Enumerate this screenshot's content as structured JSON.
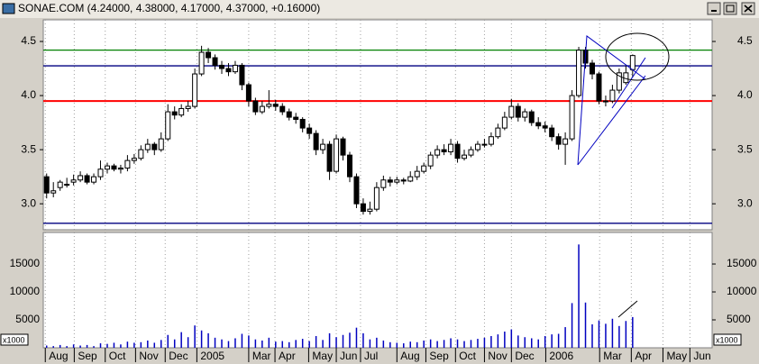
{
  "chart_data": [
    {
      "type": "candlestick",
      "title": "SONAE.COM (4.24000, 4.38000, 4.17000, 4.37000, +0.16000)",
      "x": [
        0,
        1,
        2,
        3,
        4,
        5,
        6,
        7,
        8,
        9,
        10,
        11,
        12,
        13,
        14,
        15,
        16,
        17,
        18,
        19,
        20,
        21,
        22,
        23,
        24,
        25,
        26,
        27,
        28,
        29,
        30,
        31,
        32,
        33,
        34,
        35,
        36,
        37,
        38,
        39,
        40,
        41,
        42,
        43,
        44,
        45,
        46,
        47,
        48,
        49,
        50,
        51,
        52,
        53,
        54,
        55,
        56,
        57,
        58,
        59,
        60,
        61,
        62,
        63,
        64,
        65,
        66,
        67,
        68,
        69,
        70,
        71,
        72,
        73,
        74,
        75,
        76,
        77,
        78,
        79,
        80,
        81,
        82,
        83,
        84,
        85,
        86,
        87
      ],
      "open": [
        3.25,
        3.1,
        3.15,
        3.18,
        3.2,
        3.22,
        3.26,
        3.2,
        3.25,
        3.32,
        3.35,
        3.32,
        3.33,
        3.4,
        3.42,
        3.5,
        3.55,
        3.5,
        3.6,
        3.85,
        3.82,
        3.88,
        3.9,
        4.2,
        4.4,
        4.35,
        4.28,
        4.25,
        4.22,
        4.28,
        4.1,
        3.95,
        3.85,
        3.9,
        3.92,
        3.9,
        3.85,
        3.8,
        3.78,
        3.7,
        3.65,
        3.5,
        3.55,
        3.3,
        3.6,
        3.45,
        3.25,
        3.0,
        2.93,
        2.95,
        3.15,
        3.22,
        3.2,
        3.22,
        3.21,
        3.25,
        3.3,
        3.35,
        3.45,
        3.5,
        3.48,
        3.55,
        3.42,
        3.45,
        3.5,
        3.55,
        3.55,
        3.62,
        3.7,
        3.8,
        3.9,
        3.8,
        3.85,
        3.75,
        3.72,
        3.7,
        3.62,
        3.55,
        3.6,
        4.0,
        4.42,
        4.3,
        4.2,
        3.95,
        3.95,
        4.05,
        4.12,
        4.24
      ],
      "high": [
        3.28,
        3.2,
        3.22,
        3.24,
        3.27,
        3.3,
        3.28,
        3.28,
        3.4,
        3.38,
        3.37,
        3.36,
        3.45,
        3.46,
        3.54,
        3.6,
        3.57,
        3.66,
        3.92,
        3.9,
        3.92,
        3.95,
        4.25,
        4.46,
        4.44,
        4.38,
        4.32,
        4.3,
        4.32,
        4.3,
        4.12,
        3.98,
        3.95,
        4.05,
        3.96,
        3.93,
        3.88,
        3.84,
        3.8,
        3.74,
        3.68,
        3.6,
        3.58,
        3.64,
        3.62,
        3.48,
        3.28,
        3.05,
        3.02,
        3.2,
        3.26,
        3.25,
        3.25,
        3.24,
        3.3,
        3.35,
        3.38,
        3.48,
        3.54,
        3.55,
        3.6,
        3.58,
        3.5,
        3.53,
        3.58,
        3.6,
        3.66,
        3.74,
        3.85,
        3.97,
        3.93,
        3.88,
        3.87,
        3.8,
        3.76,
        3.73,
        3.65,
        3.66,
        4.05,
        4.45,
        4.45,
        4.33,
        4.22,
        4.0,
        4.1,
        4.25,
        4.28,
        4.38
      ],
      "low": [
        3.05,
        3.06,
        3.12,
        3.15,
        3.17,
        3.2,
        3.18,
        3.18,
        3.22,
        3.28,
        3.3,
        3.28,
        3.3,
        3.37,
        3.4,
        3.47,
        3.45,
        3.48,
        3.58,
        3.78,
        3.8,
        3.85,
        3.88,
        4.18,
        4.3,
        4.24,
        4.2,
        4.18,
        4.2,
        4.05,
        3.9,
        3.82,
        3.83,
        3.88,
        3.86,
        3.82,
        3.77,
        3.74,
        3.66,
        3.6,
        3.45,
        3.46,
        3.22,
        3.28,
        3.4,
        3.2,
        2.96,
        2.9,
        2.9,
        2.93,
        3.12,
        3.16,
        3.18,
        3.18,
        3.2,
        3.22,
        3.28,
        3.32,
        3.42,
        3.45,
        3.45,
        3.38,
        3.4,
        3.43,
        3.48,
        3.52,
        3.53,
        3.6,
        3.68,
        3.78,
        3.76,
        3.76,
        3.72,
        3.69,
        3.66,
        3.58,
        3.5,
        3.36,
        3.58,
        3.98,
        4.25,
        4.15,
        3.92,
        3.9,
        3.93,
        4.02,
        4.1,
        4.17
      ],
      "close": [
        3.1,
        3.12,
        3.2,
        3.18,
        3.22,
        3.26,
        3.2,
        3.25,
        3.32,
        3.35,
        3.32,
        3.33,
        3.4,
        3.42,
        3.5,
        3.55,
        3.5,
        3.6,
        3.85,
        3.82,
        3.88,
        3.9,
        4.2,
        4.4,
        4.35,
        4.28,
        4.25,
        4.22,
        4.28,
        4.1,
        3.95,
        3.85,
        3.9,
        3.92,
        3.9,
        3.85,
        3.8,
        3.78,
        3.7,
        3.65,
        3.5,
        3.55,
        3.3,
        3.6,
        3.45,
        3.25,
        3.0,
        2.93,
        2.95,
        3.15,
        3.22,
        3.2,
        3.22,
        3.21,
        3.25,
        3.3,
        3.35,
        3.45,
        3.5,
        3.48,
        3.55,
        3.42,
        3.45,
        3.5,
        3.55,
        3.55,
        3.62,
        3.7,
        3.8,
        3.9,
        3.8,
        3.85,
        3.75,
        3.72,
        3.7,
        3.62,
        3.55,
        3.6,
        4.0,
        4.42,
        4.3,
        4.2,
        3.95,
        3.95,
        4.05,
        4.21,
        4.21,
        4.37
      ],
      "up_color": "#ffffff",
      "down_color": "#000000",
      "xlim": [
        -0.5,
        98.8
      ],
      "ylim": [
        2.76,
        4.7
      ],
      "yticks": [
        {
          "value": 3,
          "label": "3.0"
        },
        3.5,
        {
          "value": 4,
          "label": "4.0"
        },
        4.5
      ],
      "hlines": [
        {
          "value": 4.42,
          "color": "#008000"
        },
        {
          "value": 4.275,
          "color": "#000080"
        },
        {
          "value": 3.95,
          "color": "#ff0000"
        },
        {
          "value": 2.82,
          "color": "#000080"
        }
      ],
      "grid": true
    },
    {
      "type": "bar",
      "x": [
        0,
        1,
        2,
        3,
        4,
        5,
        6,
        7,
        8,
        9,
        10,
        11,
        12,
        13,
        14,
        15,
        16,
        17,
        18,
        19,
        20,
        21,
        22,
        23,
        24,
        25,
        26,
        27,
        28,
        29,
        30,
        31,
        32,
        33,
        34,
        35,
        36,
        37,
        38,
        39,
        40,
        41,
        42,
        43,
        44,
        45,
        46,
        47,
        48,
        49,
        50,
        51,
        52,
        53,
        54,
        55,
        56,
        57,
        58,
        59,
        60,
        61,
        62,
        63,
        64,
        65,
        66,
        67,
        68,
        69,
        70,
        71,
        72,
        73,
        74,
        75,
        76,
        77,
        78,
        79,
        80,
        81,
        82,
        83,
        84,
        85,
        86,
        87
      ],
      "values": [
        400,
        300,
        500,
        300,
        600,
        400,
        500,
        300,
        800,
        700,
        900,
        600,
        1100,
        900,
        1000,
        1300,
        900,
        1400,
        2300,
        1500,
        2800,
        1900,
        4000,
        3100,
        2600,
        1800,
        1500,
        1200,
        1700,
        2500,
        2200,
        1500,
        1300,
        1800,
        1100,
        1200,
        1000,
        1400,
        1600,
        1200,
        2100,
        1400,
        2600,
        1900,
        2300,
        2700,
        3600,
        2600,
        1500,
        1800,
        1300,
        1000,
        900,
        800,
        1100,
        1000,
        1300,
        1500,
        1200,
        1400,
        1700,
        1500,
        1200,
        1400,
        1600,
        1800,
        2100,
        2400,
        2900,
        3300,
        2200,
        1900,
        1700,
        1500,
        2100,
        2400,
        2500,
        3700,
        8000,
        18500,
        8100,
        4200,
        4900,
        4300,
        5200,
        3900,
        4800,
        5500
      ],
      "color": "#0000c0",
      "xlim": [
        -0.5,
        98.8
      ],
      "ylim": [
        0,
        20650
      ],
      "yticks": [
        5000,
        10000,
        15000
      ],
      "y_unit_label": "x1000",
      "xticks": [
        {
          "value": -0.2,
          "label": "Aug"
        },
        {
          "value": 4.1,
          "label": "Sep"
        },
        {
          "value": 8.7,
          "label": "Oct"
        },
        {
          "value": 13.2,
          "label": "Nov"
        },
        {
          "value": 17.6,
          "label": "Dec"
        },
        {
          "value": 22.3,
          "label": "2005"
        },
        {
          "value": 30,
          "label": "Mar"
        },
        {
          "value": 33.9,
          "label": "Apr"
        },
        {
          "value": 38.9,
          "label": "May"
        },
        {
          "value": 43,
          "label": "Jun"
        },
        {
          "value": 46.6,
          "label": "Jul"
        },
        {
          "value": 52,
          "label": "Aug"
        },
        {
          "value": 56.3,
          "label": "Sep"
        },
        {
          "value": 60.7,
          "label": "Oct"
        },
        {
          "value": 65,
          "label": "Nov"
        },
        {
          "value": 69,
          "label": "Dec"
        },
        {
          "value": 74.1,
          "label": "2006"
        },
        {
          "value": 82.1,
          "label": "Mar"
        },
        {
          "value": 86.8,
          "label": "Apr"
        },
        {
          "value": 91.5,
          "label": "May"
        },
        {
          "value": 95.5,
          "label": "Jun"
        }
      ],
      "grid": true
    }
  ]
}
